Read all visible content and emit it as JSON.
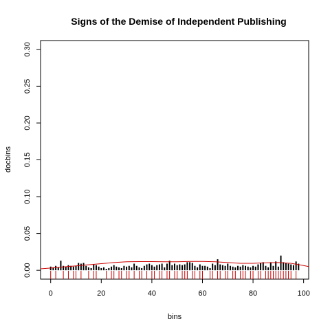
{
  "chart_data": {
    "type": "bar",
    "title": "Signs of the Demise of Independent Publishing",
    "xlabel": "bins",
    "ylabel": "docbins",
    "xlim": [
      -4,
      102
    ],
    "ylim": [
      -0.012,
      0.312
    ],
    "x_ticks": [
      "0",
      "20",
      "40",
      "60",
      "80",
      "100"
    ],
    "y_ticks": [
      "0.00",
      "0.05",
      "0.10",
      "0.15",
      "0.20",
      "0.25",
      "0.30"
    ],
    "grid": false,
    "legend": "none",
    "colors": {
      "bars": "#000000",
      "curve": "#cc0000",
      "rug": "#cc0000"
    },
    "x": [
      0,
      1,
      2,
      3,
      4,
      5,
      6,
      7,
      8,
      9,
      10,
      11,
      12,
      13,
      14,
      15,
      16,
      17,
      18,
      19,
      20,
      21,
      22,
      23,
      24,
      25,
      26,
      27,
      28,
      29,
      30,
      31,
      32,
      33,
      34,
      35,
      36,
      37,
      38,
      39,
      40,
      41,
      42,
      43,
      44,
      45,
      46,
      47,
      48,
      49,
      50,
      51,
      52,
      53,
      54,
      55,
      56,
      57,
      58,
      59,
      60,
      61,
      62,
      63,
      64,
      65,
      66,
      67,
      68,
      69,
      70,
      71,
      72,
      73,
      74,
      75,
      76,
      77,
      78,
      79,
      80,
      81,
      82,
      83,
      84,
      85,
      86,
      87,
      88,
      89,
      90,
      91,
      92,
      93,
      94,
      95,
      96,
      97,
      98
    ],
    "values": [
      0.005,
      0.004,
      0.006,
      0.004,
      0.013,
      0.006,
      0.005,
      0.007,
      0.006,
      0.005,
      0.006,
      0.01,
      0.009,
      0.01,
      0.006,
      0.004,
      0.003,
      0.008,
      0.007,
      0.005,
      0.003,
      0.004,
      0.002,
      0.003,
      0.005,
      0.007,
      0.005,
      0.004,
      0.003,
      0.006,
      0.005,
      0.006,
      0.004,
      0.009,
      0.006,
      0.004,
      0.003,
      0.006,
      0.008,
      0.009,
      0.007,
      0.005,
      0.007,
      0.008,
      0.009,
      0.004,
      0.009,
      0.013,
      0.007,
      0.009,
      0.007,
      0.008,
      0.007,
      0.008,
      0.011,
      0.011,
      0.01,
      0.006,
      0.004,
      0.008,
      0.006,
      0.006,
      0.005,
      0.003,
      0.009,
      0.007,
      0.015,
      0.008,
      0.007,
      0.006,
      0.009,
      0.006,
      0.005,
      0.004,
      0.006,
      0.005,
      0.007,
      0.006,
      0.005,
      0.004,
      0.006,
      0.005,
      0.008,
      0.01,
      0.011,
      0.006,
      0.004,
      0.011,
      0.006,
      0.012,
      0.005,
      0.02,
      0.011,
      0.01,
      0.009,
      0.008,
      0.007,
      0.012,
      0.009
    ],
    "density_curve": {
      "x": [
        -4,
        0,
        5,
        10,
        15,
        20,
        25,
        30,
        35,
        40,
        45,
        50,
        55,
        60,
        65,
        70,
        75,
        80,
        85,
        90,
        95,
        100,
        102
      ],
      "y": [
        0.002,
        0.003,
        0.0045,
        0.006,
        0.0075,
        0.009,
        0.0105,
        0.0115,
        0.0118,
        0.0118,
        0.0115,
        0.0115,
        0.012,
        0.012,
        0.0115,
        0.0105,
        0.0095,
        0.0095,
        0.0102,
        0.0105,
        0.0095,
        0.0065,
        0.005
      ]
    },
    "rug": [
      0,
      2,
      5,
      7,
      9,
      10,
      12,
      15,
      17,
      18,
      22,
      24,
      25,
      27,
      28,
      30,
      31,
      33,
      35,
      36,
      38,
      40,
      41,
      43,
      44,
      46,
      47,
      49,
      50,
      52,
      53,
      54,
      56,
      57,
      59,
      60,
      63,
      64,
      66,
      67,
      69,
      70,
      72,
      73,
      75,
      76,
      77,
      79,
      80,
      82,
      83,
      85,
      86,
      87,
      88,
      89,
      90,
      91,
      92,
      93,
      94,
      95,
      97
    ]
  }
}
